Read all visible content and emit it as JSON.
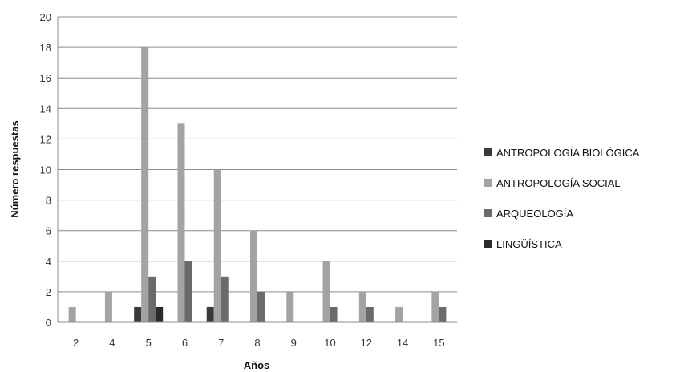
{
  "chart_data": {
    "type": "bar",
    "xlabel": "Años",
    "ylabel": "Número respuestas",
    "categories": [
      "2",
      "4",
      "5",
      "6",
      "7",
      "8",
      "9",
      "10",
      "12",
      "14",
      "15"
    ],
    "ylim": [
      0,
      20
    ],
    "yticks": [
      0,
      2,
      4,
      6,
      8,
      10,
      12,
      14,
      16,
      18,
      20
    ],
    "grid": true,
    "legend_position": "right",
    "series": [
      {
        "name": "ANTROPOLOGÍA BIOLÓGICA",
        "color": "#3a3a3a",
        "values": [
          0,
          0,
          1,
          0,
          1,
          0,
          0,
          0,
          0,
          0,
          0
        ]
      },
      {
        "name": "ANTROPOLOGÍA SOCIAL",
        "color": "#a3a3a3",
        "values": [
          1,
          2,
          18,
          13,
          10,
          6,
          2,
          4,
          2,
          1,
          2
        ]
      },
      {
        "name": "ARQUEOLOGÍA",
        "color": "#6a6a6a",
        "values": [
          0,
          0,
          3,
          4,
          3,
          2,
          0,
          1,
          1,
          0,
          1
        ]
      },
      {
        "name": "LINGÜÍSTICA",
        "color": "#2b2b2b",
        "values": [
          0,
          0,
          1,
          0,
          0,
          0,
          0,
          0,
          0,
          0,
          0
        ]
      }
    ]
  }
}
